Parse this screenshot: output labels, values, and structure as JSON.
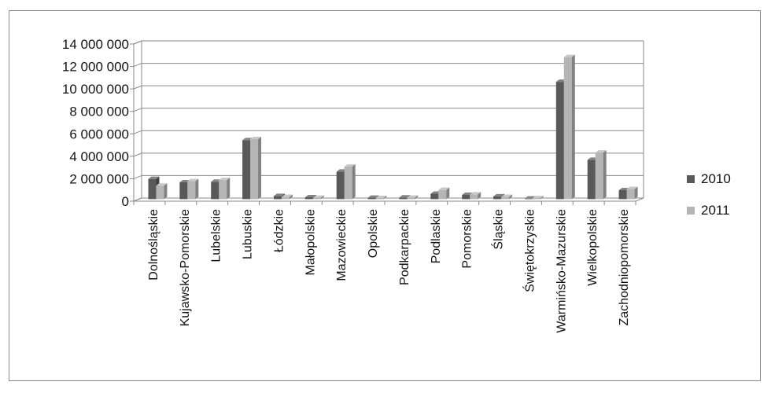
{
  "chart_data": {
    "type": "bar",
    "style": "3d-clustered-column",
    "categories": [
      "Dolnośląskie",
      "Kujawsko-Pomorskie",
      "Lubelskie",
      "Lubuskie",
      "Łódzkie",
      "Małopolskie",
      "Mazowieckie",
      "Opolskie",
      "Podkarpackie",
      "Podlaskie",
      "Pomorskie",
      "Śląskie",
      "Świętokrzyskie",
      "Warmińsko-Mazurskie",
      "Wielkopolskie",
      "Zachodniopomorskie"
    ],
    "series": [
      {
        "name": "2010",
        "color": "#595959",
        "values": [
          1800000,
          1500000,
          1550000,
          5250000,
          280000,
          170000,
          2450000,
          120000,
          150000,
          480000,
          380000,
          250000,
          50000,
          10450000,
          3500000,
          800000
        ]
      },
      {
        "name": "2011",
        "color": "#b5b5b5",
        "values": [
          1200000,
          1600000,
          1700000,
          5350000,
          200000,
          120000,
          2900000,
          100000,
          130000,
          820000,
          420000,
          200000,
          90000,
          12650000,
          4150000,
          900000
        ]
      }
    ],
    "ylim": [
      0,
      14000000
    ],
    "yticks": [
      0,
      2000000,
      4000000,
      6000000,
      8000000,
      10000000,
      12000000,
      14000000
    ],
    "ytick_labels": [
      "0",
      "2 000 000",
      "4 000 000",
      "6 000 000",
      "8 000 000",
      "10 000 000",
      "12 000 000",
      "14 000 000"
    ],
    "grid": true,
    "legend": "right"
  }
}
